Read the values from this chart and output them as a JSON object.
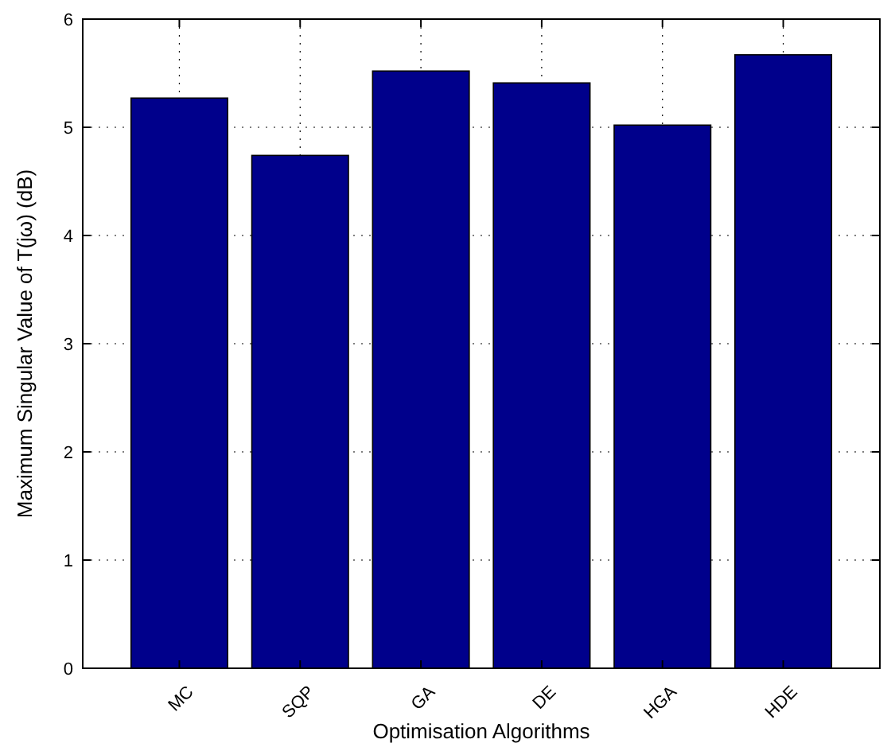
{
  "chart_data": {
    "type": "bar",
    "xlabel": "Optimisation Algorithms",
    "ylabel": "Maximum Singular Value of T(jω) (dB)",
    "categories": [
      "MC",
      "SQP",
      "GA",
      "DE",
      "HGA",
      "HDE"
    ],
    "values": [
      5.27,
      4.74,
      5.52,
      5.41,
      5.02,
      5.67
    ],
    "color": "#00008b",
    "ylim": [
      0,
      6
    ],
    "yticks": [
      0,
      1,
      2,
      3,
      4,
      5,
      6
    ],
    "grid": true
  }
}
